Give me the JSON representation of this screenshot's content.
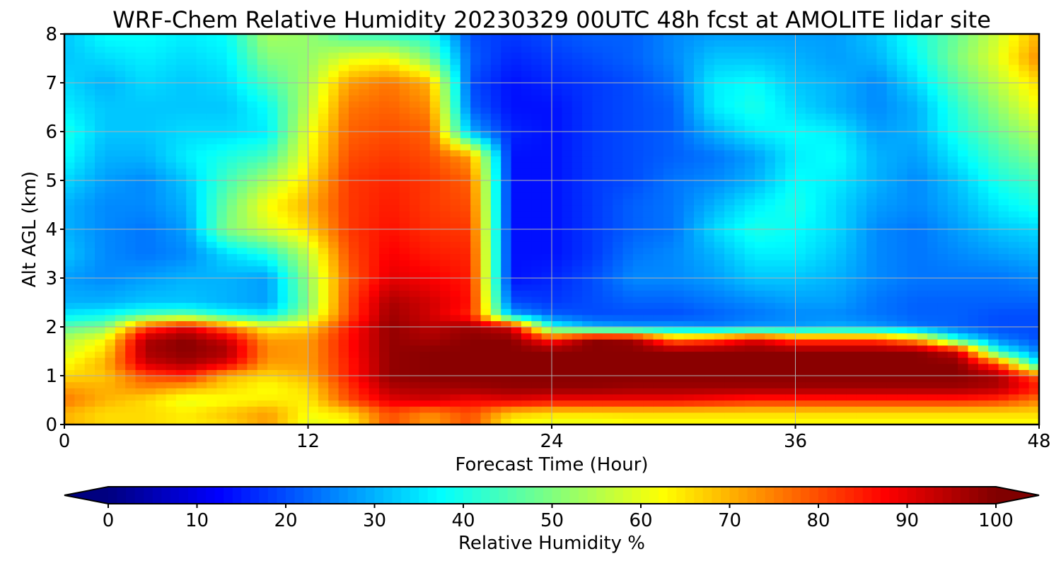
{
  "chart_data": {
    "type": "heatmap",
    "title": "WRF-Chem Relative Humidity 20230329 00UTC 48h fcst at AMOLITE lidar site",
    "xlabel": "Forecast Time (Hour)",
    "ylabel": "Alt AGL (km)",
    "xlim": [
      0,
      48
    ],
    "ylim": [
      0,
      8
    ],
    "xticks": [
      0,
      12,
      24,
      36,
      48
    ],
    "yticks": [
      0,
      1,
      2,
      3,
      4,
      5,
      6,
      7,
      8
    ],
    "grid": true,
    "x": [
      0,
      2,
      4,
      6,
      8,
      10,
      12,
      14,
      16,
      18,
      20,
      22,
      24,
      26,
      28,
      30,
      32,
      34,
      36,
      38,
      40,
      42,
      44,
      46,
      48
    ],
    "y": [
      0,
      0.25,
      0.5,
      0.75,
      1,
      1.25,
      1.5,
      1.75,
      2,
      2.25,
      2.5,
      3,
      3.5,
      4,
      4.5,
      5,
      5.5,
      6,
      6.5,
      7,
      7.5,
      8
    ],
    "z": [
      [
        70,
        66,
        66,
        64,
        66,
        72,
        60,
        62,
        80,
        72,
        80,
        62,
        60,
        60,
        62,
        62,
        62,
        62,
        62,
        62,
        62,
        62,
        62,
        62,
        62
      ],
      [
        70,
        66,
        66,
        64,
        68,
        72,
        62,
        66,
        80,
        74,
        80,
        68,
        66,
        66,
        66,
        66,
        66,
        66,
        66,
        66,
        66,
        66,
        66,
        66,
        66
      ],
      [
        76,
        70,
        66,
        60,
        62,
        64,
        64,
        80,
        90,
        92,
        88,
        90,
        88,
        88,
        88,
        88,
        86,
        84,
        84,
        84,
        84,
        84,
        84,
        82,
        75
      ],
      [
        72,
        70,
        74,
        70,
        66,
        62,
        66,
        82,
        95,
        96,
        97,
        98,
        98,
        98,
        97,
        97,
        97,
        97,
        97,
        97,
        97,
        97,
        97,
        95,
        85
      ],
      [
        66,
        68,
        80,
        84,
        70,
        66,
        70,
        85,
        98,
        99,
        99,
        99,
        99,
        99,
        99,
        99,
        99,
        99,
        99,
        99,
        99,
        99,
        99,
        96,
        78
      ],
      [
        62,
        70,
        92,
        96,
        90,
        72,
        72,
        85,
        98,
        99,
        99,
        99,
        99,
        99,
        99,
        99,
        99,
        99,
        99,
        99,
        99,
        99,
        99,
        80,
        35
      ],
      [
        58,
        66,
        96,
        99,
        96,
        74,
        72,
        86,
        98,
        99,
        99,
        99,
        99,
        99,
        99,
        99,
        99,
        99,
        99,
        99,
        99,
        99,
        92,
        40,
        25
      ],
      [
        55,
        62,
        95,
        99,
        92,
        72,
        72,
        86,
        98,
        96,
        99,
        99,
        84,
        99,
        97,
        75,
        80,
        90,
        80,
        80,
        80,
        70,
        40,
        25,
        20
      ],
      [
        46,
        50,
        80,
        90,
        76,
        62,
        66,
        85,
        98,
        94,
        97,
        92,
        40,
        30,
        28,
        28,
        26,
        28,
        28,
        30,
        28,
        24,
        22,
        20,
        20
      ],
      [
        36,
        38,
        45,
        48,
        40,
        36,
        54,
        80,
        97,
        92,
        84,
        30,
        22,
        20,
        20,
        20,
        22,
        24,
        26,
        26,
        24,
        22,
        22,
        20,
        20
      ],
      [
        30,
        30,
        32,
        32,
        30,
        28,
        50,
        80,
        96,
        92,
        86,
        20,
        18,
        20,
        22,
        22,
        24,
        26,
        28,
        28,
        24,
        22,
        22,
        22,
        22
      ],
      [
        28,
        26,
        28,
        30,
        30,
        28,
        52,
        78,
        90,
        88,
        85,
        14,
        16,
        20,
        26,
        26,
        28,
        32,
        32,
        30,
        26,
        24,
        24,
        24,
        26
      ],
      [
        32,
        26,
        24,
        26,
        34,
        40,
        56,
        80,
        88,
        85,
        84,
        14,
        14,
        18,
        24,
        26,
        30,
        36,
        36,
        32,
        26,
        24,
        26,
        28,
        30
      ],
      [
        30,
        26,
        24,
        28,
        50,
        58,
        66,
        82,
        86,
        83,
        82,
        14,
        14,
        18,
        22,
        24,
        34,
        40,
        38,
        34,
        26,
        24,
        28,
        32,
        34
      ],
      [
        30,
        26,
        26,
        30,
        48,
        62,
        70,
        82,
        85,
        82,
        80,
        14,
        14,
        18,
        22,
        24,
        30,
        36,
        40,
        34,
        28,
        26,
        30,
        36,
        40
      ],
      [
        34,
        28,
        26,
        32,
        44,
        54,
        66,
        82,
        84,
        82,
        78,
        14,
        14,
        18,
        20,
        24,
        26,
        30,
        38,
        36,
        30,
        26,
        32,
        40,
        44
      ],
      [
        38,
        30,
        30,
        36,
        40,
        44,
        62,
        80,
        82,
        80,
        72,
        14,
        14,
        18,
        20,
        22,
        24,
        28,
        36,
        38,
        30,
        28,
        36,
        44,
        50
      ],
      [
        40,
        32,
        32,
        34,
        34,
        36,
        60,
        78,
        80,
        78,
        30,
        16,
        14,
        18,
        20,
        22,
        30,
        36,
        38,
        36,
        28,
        30,
        40,
        48,
        56
      ],
      [
        36,
        32,
        32,
        32,
        32,
        38,
        56,
        76,
        78,
        74,
        22,
        14,
        14,
        18,
        20,
        22,
        36,
        40,
        34,
        30,
        26,
        30,
        42,
        52,
        62
      ],
      [
        34,
        30,
        34,
        32,
        34,
        44,
        54,
        72,
        76,
        70,
        20,
        14,
        16,
        18,
        20,
        24,
        36,
        38,
        32,
        30,
        26,
        34,
        46,
        56,
        66
      ],
      [
        32,
        34,
        36,
        34,
        36,
        50,
        52,
        60,
        62,
        50,
        22,
        16,
        18,
        20,
        22,
        26,
        32,
        32,
        30,
        28,
        30,
        38,
        50,
        60,
        74
      ],
      [
        32,
        38,
        38,
        36,
        38,
        54,
        52,
        44,
        42,
        40,
        20,
        18,
        20,
        22,
        22,
        26,
        28,
        28,
        28,
        28,
        32,
        40,
        48,
        58,
        70
      ]
    ]
  },
  "colorbar": {
    "label": "Relative Humidity %",
    "ticks": [
      0,
      10,
      20,
      30,
      40,
      50,
      60,
      70,
      80,
      90,
      100
    ],
    "extend": "both",
    "colormap": "jet"
  }
}
